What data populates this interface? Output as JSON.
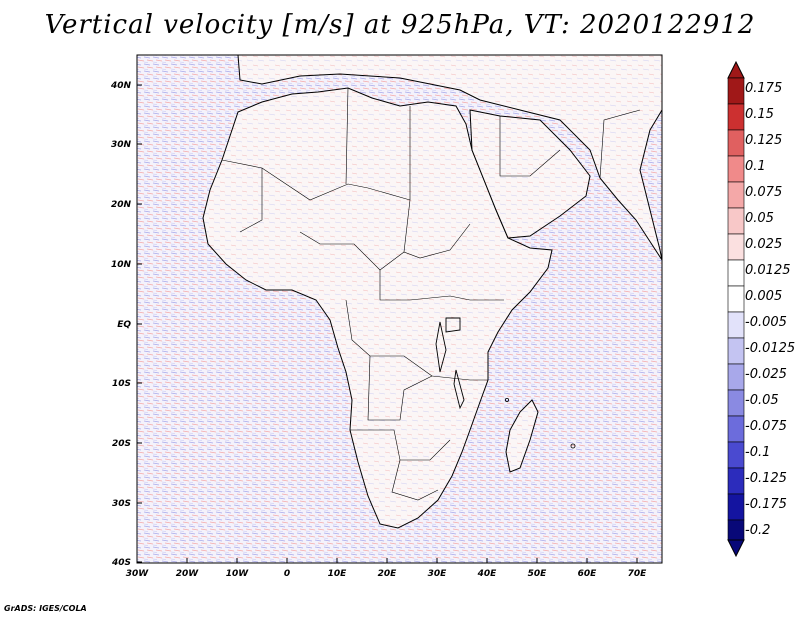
{
  "title": "Vertical velocity [m/s] at 925hPa, VT: 2020122912",
  "credit": "GrADS: IGES/COLA",
  "map": {
    "lon_range": [
      -30,
      75
    ],
    "lat_range": [
      -40,
      45
    ],
    "lat_ticks": [
      "40N",
      "30N",
      "20N",
      "10N",
      "EQ",
      "10S",
      "20S",
      "30S",
      "40S"
    ],
    "lon_ticks": [
      "30W",
      "20W",
      "10W",
      "0",
      "10E",
      "20E",
      "30E",
      "40E",
      "50E",
      "60E",
      "70E"
    ]
  },
  "colorbar": {
    "colors": [
      "#a01818",
      "#cc3030",
      "#e06060",
      "#f08a8a",
      "#f4a8a8",
      "#f8c8c8",
      "#fbe0e0",
      "#ffffff",
      "#ffffff",
      "#e2e2fa",
      "#c4c4f2",
      "#a8a8ea",
      "#8a8ae2",
      "#6c6cdc",
      "#4a4ad0",
      "#2c2cbc",
      "#1414a0",
      "#080878"
    ],
    "labels": [
      "0.175",
      "0.15",
      "0.125",
      "0.1",
      "0.075",
      "0.05",
      "0.025",
      "0.0125",
      "0.005",
      "-0.005",
      "-0.0125",
      "-0.025",
      "-0.05",
      "-0.075",
      "-0.1",
      "-0.125",
      "-0.175",
      "-0.2"
    ]
  }
}
